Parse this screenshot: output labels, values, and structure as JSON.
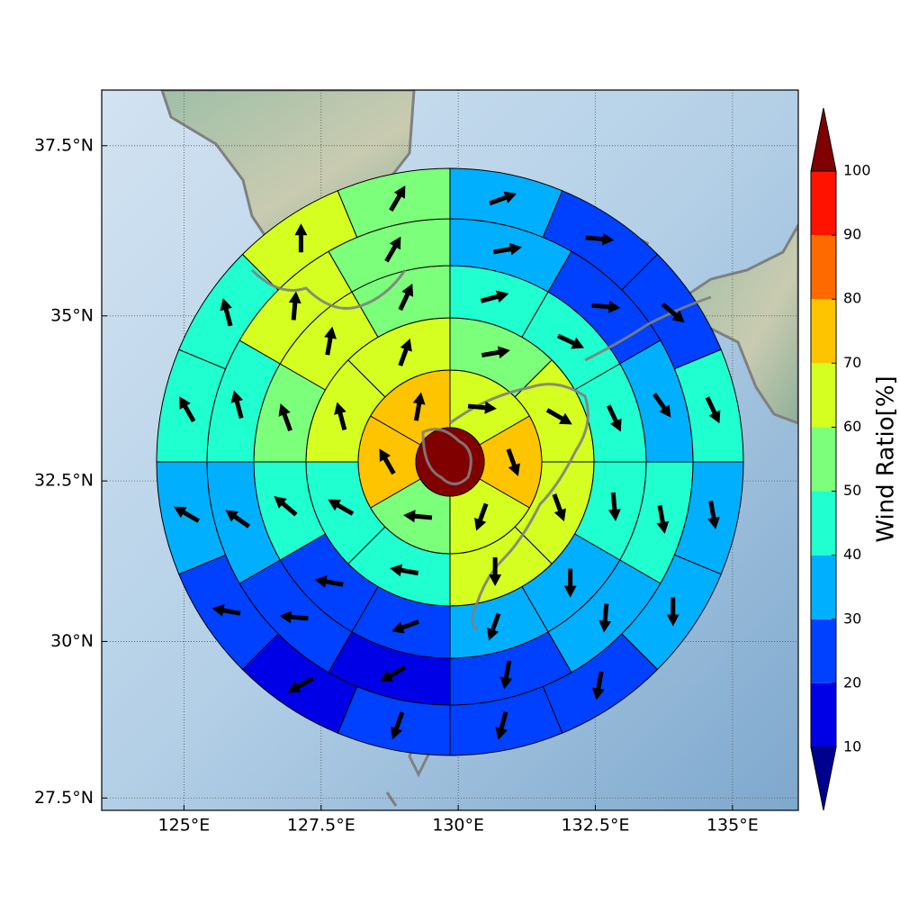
{
  "chart_data": {
    "type": "sector",
    "xlim": [
      123.5,
      136.2
    ],
    "ylim": [
      27.3,
      38.3
    ],
    "xticks": [
      {
        "value": 125,
        "label": "125°E"
      },
      {
        "value": 127.5,
        "label": "127.5°E"
      },
      {
        "value": 130,
        "label": "130°E"
      },
      {
        "value": 132.5,
        "label": "132.5°E"
      },
      {
        "value": 135,
        "label": "135°E"
      }
    ],
    "yticks": [
      {
        "value": 27.5,
        "label": "27.5°N"
      },
      {
        "value": 30,
        "label": "30°N"
      },
      {
        "value": 32.5,
        "label": "32.5°N"
      },
      {
        "value": 35,
        "label": "35°N"
      },
      {
        "value": 37.5,
        "label": "37.5°N"
      }
    ],
    "grid": true,
    "center": {
      "value": 102
    },
    "rings": [
      {
        "values": [
          60,
          72,
          65,
          55,
          72,
          75
        ],
        "directions": [
          95,
          160,
          200,
          275,
          330,
          10
        ]
      },
      {
        "values": [
          55,
          62,
          62,
          65,
          45,
          45,
          65,
          65
        ],
        "directions": [
          80,
          120,
          160,
          180,
          280,
          300,
          345,
          20
        ]
      },
      {
        "values": [
          45,
          45,
          45,
          45,
          35,
          35,
          25,
          25,
          45,
          55,
          65,
          55
        ],
        "directions": [
          75,
          115,
          155,
          175,
          180,
          200,
          250,
          280,
          310,
          340,
          10,
          25
        ]
      },
      {
        "values": [
          35,
          25,
          35,
          45,
          35,
          25,
          15,
          25,
          35,
          45,
          65,
          55
        ],
        "directions": [
          80,
          95,
          145,
          170,
          185,
          190,
          240,
          275,
          305,
          345,
          5,
          30
        ]
      },
      {
        "values": [
          35,
          25,
          25,
          40,
          35,
          30,
          25,
          25,
          20,
          15,
          20,
          35,
          45,
          45,
          65,
          55
        ],
        "directions": [
          70,
          95,
          130,
          155,
          170,
          180,
          190,
          195,
          200,
          240,
          280,
          300,
          330,
          345,
          0,
          30
        ]
      }
    ],
    "colorbar": {
      "label": "Wind Ratio[%]",
      "clim": [
        10,
        100
      ],
      "ticks": [
        10,
        20,
        30,
        40,
        50,
        60,
        70,
        80,
        90,
        100
      ],
      "colors": [
        "#0000e6",
        "#0040ff",
        "#00b0ff",
        "#20ffd0",
        "#7cff7a",
        "#d4ff20",
        "#ffc400",
        "#ff6a00",
        "#ff1200"
      ],
      "under": "#000090",
      "over": "#800000",
      "extend": "both"
    }
  }
}
